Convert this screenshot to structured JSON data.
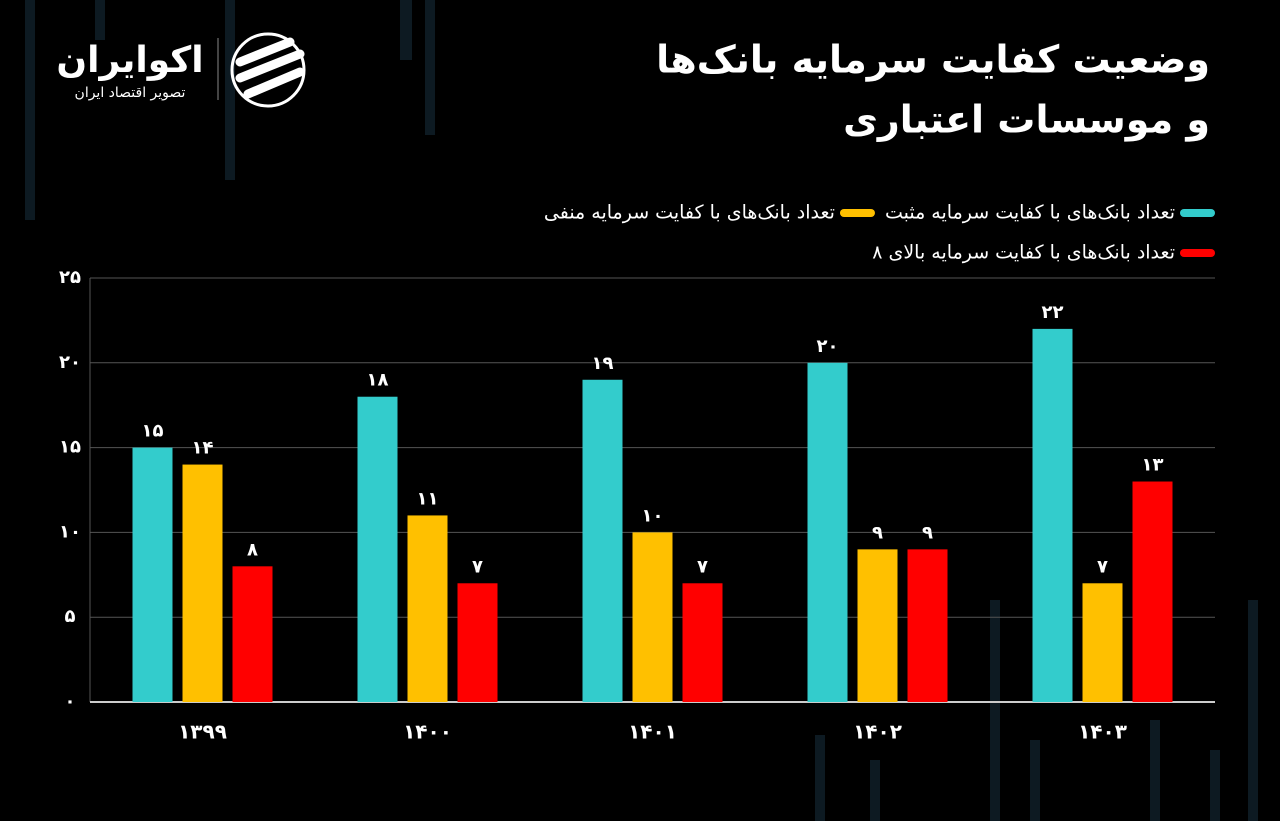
{
  "logo": {
    "name": "اکوایران",
    "tagline": "تصویر اقتصاد ایران"
  },
  "chart_data": {
    "type": "bar",
    "title": [
      "وضعیت کفایت سرمایه بانک‌ها",
      "و موسسات اعتباری"
    ],
    "categories": [
      "۱۳۹۹",
      "۱۴۰۰",
      "۱۴۰۱",
      "۱۴۰۲",
      "۱۴۰۳"
    ],
    "series": [
      {
        "name": "تعداد بانک‌های با کفایت سرمایه مثبت",
        "color": "#33cccc",
        "values": [
          15,
          18,
          19,
          20,
          22
        ],
        "value_labels": [
          "۱۵",
          "۱۸",
          "۱۹",
          "۲۰",
          "۲۲"
        ]
      },
      {
        "name": "تعداد بانک‌های با کفایت سرمایه منفی",
        "color": "#ffc000",
        "values": [
          14,
          11,
          10,
          9,
          7
        ],
        "value_labels": [
          "۱۴",
          "۱۱",
          "۱۰",
          "۹",
          "۷"
        ]
      },
      {
        "name": "تعداد بانک‌های با کفایت سرمایه بالای ۸",
        "color": "#ff0000",
        "values": [
          8,
          7,
          7,
          9,
          13
        ],
        "value_labels": [
          "۸",
          "۷",
          "۷",
          "۹",
          "۱۳"
        ]
      }
    ],
    "ylim": [
      0,
      25
    ],
    "yticks": [
      {
        "value": 0,
        "label": "۰"
      },
      {
        "value": 5,
        "label": "۵"
      },
      {
        "value": 10,
        "label": "۱۰"
      },
      {
        "value": 15,
        "label": "۱۵"
      },
      {
        "value": 20,
        "label": "۲۰"
      },
      {
        "value": 25,
        "label": "۲۵"
      }
    ],
    "grid": true
  }
}
